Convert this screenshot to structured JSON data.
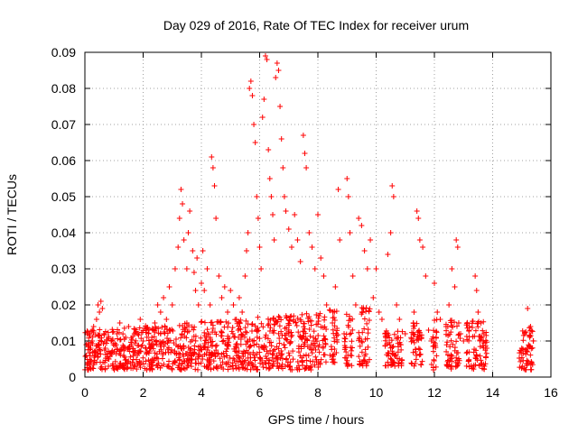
{
  "chart_data": {
    "type": "scatter",
    "title": "Day 029 of 2016, Rate Of TEC Index for receiver urum",
    "xlabel": "GPS time / hours",
    "ylabel": "ROTI / TECUs",
    "xlim": [
      0,
      16
    ],
    "ylim": [
      0,
      0.09
    ],
    "xticks": [
      0,
      2,
      4,
      6,
      8,
      10,
      12,
      14,
      16
    ],
    "xtick_labels": [
      "0",
      "2",
      "4",
      "6",
      "8",
      "10",
      "12",
      "14",
      "16"
    ],
    "yticks": [
      0,
      0.01,
      0.02,
      0.03,
      0.04,
      0.05,
      0.06,
      0.07,
      0.08,
      0.09
    ],
    "ytick_labels": [
      "0",
      "0.01",
      "0.02",
      "0.03",
      "0.04",
      "0.05",
      "0.06",
      "0.07",
      "0.08",
      "0.09"
    ],
    "grid": true,
    "marker": "+",
    "color": "#ff0000",
    "series": [
      {
        "name": "ROTI",
        "points": [
          [
            0.05,
            0.006
          ],
          [
            0.1,
            0.004
          ],
          [
            0.15,
            0.012
          ],
          [
            0.2,
            0.008
          ],
          [
            0.25,
            0.01
          ],
          [
            0.3,
            0.014
          ],
          [
            0.35,
            0.006
          ],
          [
            0.4,
            0.016
          ],
          [
            0.45,
            0.02
          ],
          [
            0.5,
            0.018
          ],
          [
            0.55,
            0.021
          ],
          [
            0.6,
            0.019
          ],
          [
            0.65,
            0.012
          ],
          [
            0.7,
            0.008
          ],
          [
            0.8,
            0.005
          ],
          [
            0.9,
            0.01
          ],
          [
            1.0,
            0.007
          ],
          [
            1.1,
            0.012
          ],
          [
            1.2,
            0.015
          ],
          [
            1.3,
            0.008
          ],
          [
            1.4,
            0.011
          ],
          [
            1.5,
            0.014
          ],
          [
            1.6,
            0.009
          ],
          [
            1.7,
            0.012
          ],
          [
            1.8,
            0.006
          ],
          [
            1.9,
            0.016
          ],
          [
            2.0,
            0.01
          ],
          [
            2.1,
            0.008
          ],
          [
            2.2,
            0.013
          ],
          [
            2.3,
            0.011
          ],
          [
            2.4,
            0.015
          ],
          [
            2.5,
            0.02
          ],
          [
            2.6,
            0.018
          ],
          [
            2.7,
            0.022
          ],
          [
            2.8,
            0.016
          ],
          [
            2.9,
            0.025
          ],
          [
            3.0,
            0.02
          ],
          [
            3.1,
            0.03
          ],
          [
            3.2,
            0.036
          ],
          [
            3.25,
            0.044
          ],
          [
            3.3,
            0.052
          ],
          [
            3.35,
            0.048
          ],
          [
            3.4,
            0.038
          ],
          [
            3.5,
            0.03
          ],
          [
            3.55,
            0.04
          ],
          [
            3.6,
            0.046
          ],
          [
            3.7,
            0.035
          ],
          [
            3.75,
            0.029
          ],
          [
            3.8,
            0.024
          ],
          [
            3.85,
            0.033
          ],
          [
            3.9,
            0.02
          ],
          [
            4.0,
            0.026
          ],
          [
            4.05,
            0.035
          ],
          [
            4.1,
            0.024
          ],
          [
            4.2,
            0.03
          ],
          [
            4.3,
            0.02
          ],
          [
            4.35,
            0.061
          ],
          [
            4.4,
            0.058
          ],
          [
            4.45,
            0.053
          ],
          [
            4.5,
            0.044
          ],
          [
            4.6,
            0.028
          ],
          [
            4.7,
            0.022
          ],
          [
            4.8,
            0.025
          ],
          [
            4.9,
            0.018
          ],
          [
            5.0,
            0.024
          ],
          [
            5.1,
            0.02
          ],
          [
            5.2,
            0.016
          ],
          [
            5.3,
            0.022
          ],
          [
            5.4,
            0.018
          ],
          [
            5.5,
            0.028
          ],
          [
            5.55,
            0.035
          ],
          [
            5.6,
            0.04
          ],
          [
            5.65,
            0.08
          ],
          [
            5.7,
            0.082
          ],
          [
            5.75,
            0.078
          ],
          [
            5.8,
            0.07
          ],
          [
            5.85,
            0.065
          ],
          [
            5.9,
            0.05
          ],
          [
            5.95,
            0.044
          ],
          [
            6.0,
            0.036
          ],
          [
            6.05,
            0.03
          ],
          [
            6.1,
            0.072
          ],
          [
            6.15,
            0.077
          ],
          [
            6.2,
            0.089
          ],
          [
            6.25,
            0.088
          ],
          [
            6.3,
            0.063
          ],
          [
            6.35,
            0.055
          ],
          [
            6.4,
            0.05
          ],
          [
            6.45,
            0.045
          ],
          [
            6.5,
            0.038
          ],
          [
            6.55,
            0.083
          ],
          [
            6.6,
            0.087
          ],
          [
            6.65,
            0.085
          ],
          [
            6.7,
            0.075
          ],
          [
            6.75,
            0.066
          ],
          [
            6.8,
            0.058
          ],
          [
            6.85,
            0.05
          ],
          [
            6.9,
            0.046
          ],
          [
            7.0,
            0.041
          ],
          [
            7.1,
            0.036
          ],
          [
            7.2,
            0.045
          ],
          [
            7.3,
            0.038
          ],
          [
            7.4,
            0.032
          ],
          [
            7.5,
            0.067
          ],
          [
            7.55,
            0.062
          ],
          [
            7.6,
            0.058
          ],
          [
            7.7,
            0.04
          ],
          [
            7.8,
            0.036
          ],
          [
            7.9,
            0.03
          ],
          [
            8.0,
            0.045
          ],
          [
            8.1,
            0.033
          ],
          [
            8.2,
            0.028
          ],
          [
            8.3,
            0.02
          ],
          [
            8.5,
            0.015
          ],
          [
            8.6,
            0.025
          ],
          [
            8.7,
            0.052
          ],
          [
            8.75,
            0.038
          ],
          [
            8.9,
            0.012
          ],
          [
            9.0,
            0.055
          ],
          [
            9.05,
            0.05
          ],
          [
            9.1,
            0.04
          ],
          [
            9.2,
            0.028
          ],
          [
            9.3,
            0.02
          ],
          [
            9.4,
            0.044
          ],
          [
            9.5,
            0.042
          ],
          [
            9.6,
            0.035
          ],
          [
            9.7,
            0.03
          ],
          [
            9.8,
            0.038
          ],
          [
            9.9,
            0.022
          ],
          [
            10.0,
            0.03
          ],
          [
            10.1,
            0.018
          ],
          [
            10.2,
            0.016
          ],
          [
            10.3,
            0.012
          ],
          [
            10.4,
            0.034
          ],
          [
            10.5,
            0.04
          ],
          [
            10.55,
            0.053
          ],
          [
            10.6,
            0.05
          ],
          [
            10.7,
            0.02
          ],
          [
            10.8,
            0.016
          ],
          [
            11.0,
            0.012
          ],
          [
            11.3,
            0.018
          ],
          [
            11.4,
            0.046
          ],
          [
            11.45,
            0.044
          ],
          [
            11.5,
            0.038
          ],
          [
            11.6,
            0.036
          ],
          [
            11.7,
            0.028
          ],
          [
            11.8,
            0.013
          ],
          [
            11.9,
            0.01
          ],
          [
            12.0,
            0.026
          ],
          [
            12.1,
            0.018
          ],
          [
            12.2,
            0.016
          ],
          [
            12.4,
            0.014
          ],
          [
            12.5,
            0.02
          ],
          [
            12.6,
            0.03
          ],
          [
            12.7,
            0.025
          ],
          [
            12.75,
            0.038
          ],
          [
            12.8,
            0.036
          ],
          [
            12.9,
            0.012
          ],
          [
            13.0,
            0.01
          ],
          [
            13.2,
            0.014
          ],
          [
            13.4,
            0.028
          ],
          [
            13.45,
            0.024
          ],
          [
            13.5,
            0.018
          ],
          [
            13.6,
            0.015
          ],
          [
            13.7,
            0.012
          ],
          [
            13.8,
            0.008
          ],
          [
            15.0,
            0.008
          ],
          [
            15.1,
            0.012
          ],
          [
            15.2,
            0.019
          ],
          [
            15.3,
            0.014
          ],
          [
            15.4,
            0.01
          ]
        ]
      }
    ],
    "bands": [
      {
        "x": [
          0.0,
          8.3
        ],
        "floor": [
          0.002,
          0.002
        ],
        "ceil": [
          0.013,
          0.018
        ]
      },
      {
        "x": [
          8.4,
          8.7
        ],
        "floor": [
          0.004,
          0.004
        ],
        "ceil": [
          0.02,
          0.02
        ]
      },
      {
        "x": [
          8.9,
          9.2
        ],
        "floor": [
          0.003,
          0.003
        ],
        "ceil": [
          0.018,
          0.018
        ]
      },
      {
        "x": [
          9.4,
          9.8
        ],
        "floor": [
          0.003,
          0.003
        ],
        "ceil": [
          0.02,
          0.02
        ]
      },
      {
        "x": [
          10.3,
          10.9
        ],
        "floor": [
          0.003,
          0.003
        ],
        "ceil": [
          0.013,
          0.013
        ]
      },
      {
        "x": [
          11.2,
          11.6
        ],
        "floor": [
          0.003,
          0.003
        ],
        "ceil": [
          0.015,
          0.015
        ]
      },
      {
        "x": [
          11.9,
          12.1
        ],
        "floor": [
          0.002,
          0.002
        ],
        "ceil": [
          0.016,
          0.016
        ]
      },
      {
        "x": [
          12.4,
          12.9
        ],
        "floor": [
          0.002,
          0.002
        ],
        "ceil": [
          0.016,
          0.016
        ]
      },
      {
        "x": [
          13.1,
          13.8
        ],
        "floor": [
          0.002,
          0.002
        ],
        "ceil": [
          0.016,
          0.016
        ]
      },
      {
        "x": [
          14.9,
          15.4
        ],
        "floor": [
          0.002,
          0.002
        ],
        "ceil": [
          0.014,
          0.014
        ]
      }
    ],
    "band_density": 1400,
    "tick_marks_every": 1
  }
}
